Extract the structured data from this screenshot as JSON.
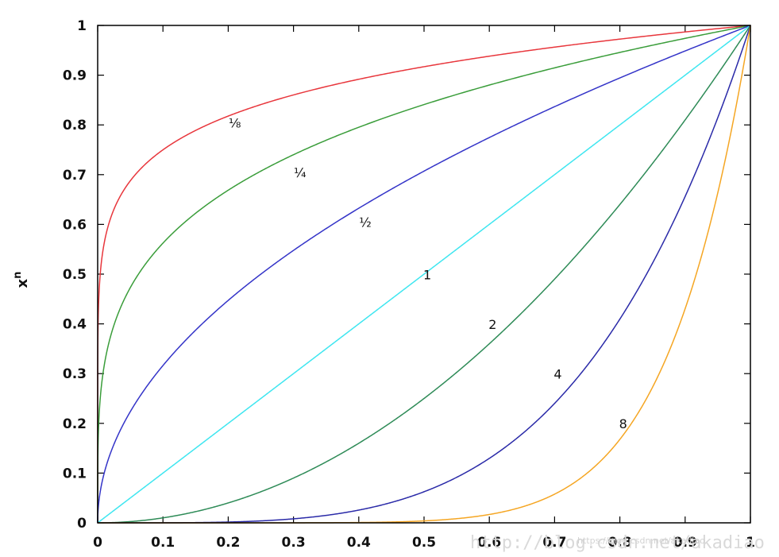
{
  "chart_data": {
    "type": "line",
    "title": "",
    "xlabel": "",
    "ylabel": "x",
    "ylabel_superscript": "n",
    "xlim": [
      0,
      1
    ],
    "ylim": [
      0,
      1
    ],
    "x_ticks": [
      0,
      0.1,
      0.2,
      0.3,
      0.4,
      0.5,
      0.6,
      0.7,
      0.8,
      0.9,
      1
    ],
    "x_tick_labels": [
      "0",
      "0.1",
      "0.2",
      "0.3",
      "0.4",
      "0.5",
      "0.6",
      "0.7",
      "0.8",
      "0.9",
      "1"
    ],
    "y_ticks": [
      0,
      0.1,
      0.2,
      0.3,
      0.4,
      0.5,
      0.6,
      0.7,
      0.8,
      0.9,
      1
    ],
    "y_tick_labels": [
      "0",
      "0.1",
      "0.2",
      "0.3",
      "0.4",
      "0.5",
      "0.6",
      "0.7",
      "0.8",
      "0.9",
      "1"
    ],
    "function": "y = x^n",
    "series": [
      {
        "name": "1/8",
        "label": "⅛",
        "exponent": 0.125,
        "color": "#e8363c",
        "label_x": 0.21,
        "label_y": 0.795
      },
      {
        "name": "1/4",
        "label": "¼",
        "exponent": 0.25,
        "color": "#3a9d3a",
        "label_x": 0.31,
        "label_y": 0.695
      },
      {
        "name": "1/2",
        "label": "½",
        "exponent": 0.5,
        "color": "#3434c8",
        "label_x": 0.41,
        "label_y": 0.595
      },
      {
        "name": "1",
        "label": "1",
        "exponent": 1,
        "color": "#3fe6f0",
        "label_x": 0.505,
        "label_y": 0.49
      },
      {
        "name": "2",
        "label": "2",
        "exponent": 2,
        "color": "#2e8b57",
        "label_x": 0.605,
        "label_y": 0.39
      },
      {
        "name": "4",
        "label": "4",
        "exponent": 4,
        "color": "#2a2aa8",
        "label_x": 0.705,
        "label_y": 0.29
      },
      {
        "name": "8",
        "label": "8",
        "exponent": 8,
        "color": "#f5a623",
        "label_x": 0.805,
        "label_y": 0.19
      }
    ]
  },
  "watermark": {
    "main": "http://blog.csdn.net/akadiao",
    "small": "https://blog.csdn.net/akadiao"
  },
  "colors": {
    "axis": "#000000",
    "background": "#ffffff"
  }
}
